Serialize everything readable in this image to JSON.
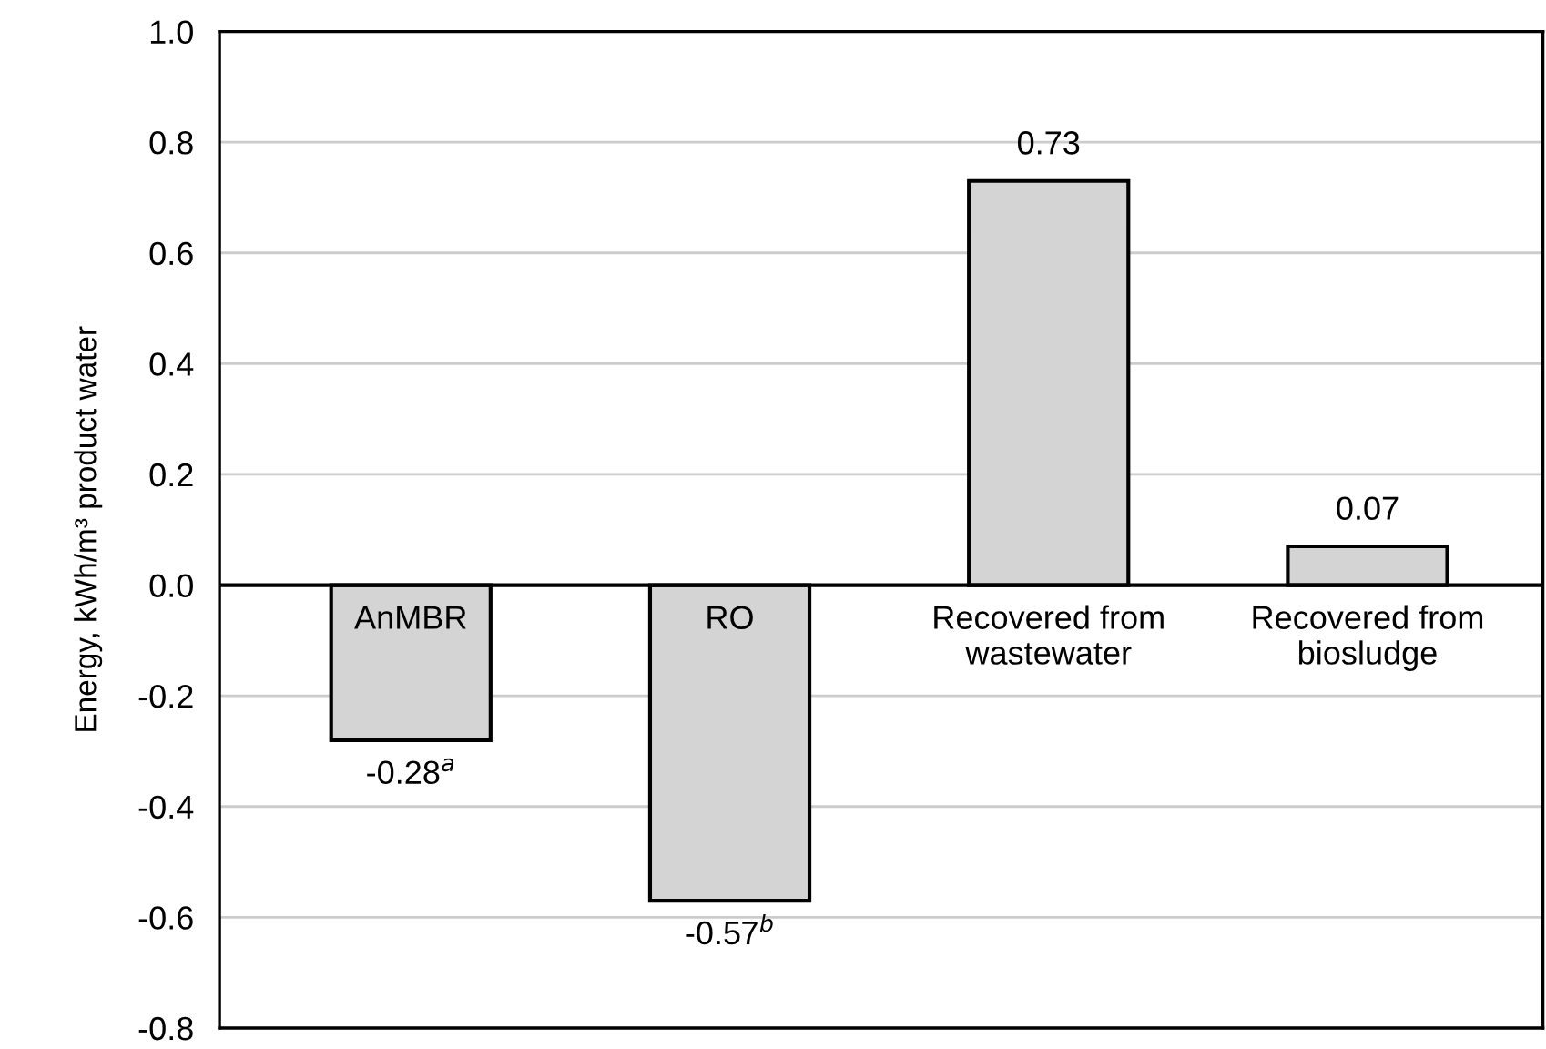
{
  "chart_data": {
    "type": "bar",
    "ylabel": "Energy, kWh/m³ product water",
    "categories": [
      "AnMBR",
      "RO",
      "Recovered from\nwastewater",
      "Recovered from\nbiosludge"
    ],
    "values": [
      -0.28,
      -0.57,
      0.73,
      0.07
    ],
    "value_labels": [
      "-0.28$^{a}$",
      "-0.57$^{b}$",
      "0.73",
      "0.07"
    ],
    "color": "#d4d4d4",
    "ylim": [
      -0.8,
      1.0
    ],
    "yticks": [
      {
        "value": -0.8,
        "label": "-0.8"
      },
      {
        "value": -0.6,
        "label": "-0.6"
      },
      {
        "value": -0.4,
        "label": "-0.4"
      },
      {
        "value": -0.2,
        "label": "-0.2"
      },
      {
        "value": 0.0,
        "label": "0.0"
      },
      {
        "value": 0.2,
        "label": "0.2"
      },
      {
        "value": 0.4,
        "label": "0.4"
      },
      {
        "value": 0.6,
        "label": "0.6"
      },
      {
        "value": 0.8,
        "label": "0.8"
      },
      {
        "value": 1.0,
        "label": "1.0"
      }
    ],
    "grid": "y"
  }
}
